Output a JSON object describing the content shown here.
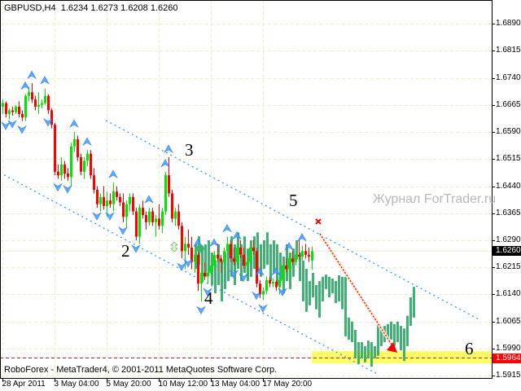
{
  "chart_data": {
    "type": "candlestick",
    "title": "GBPUSD,H4",
    "ohlc_header": [
      "1.6234",
      "1.6273",
      "1.6208",
      "1.6260"
    ],
    "footer": "RoboForex - MetaTrader4, © 2001-2011 MetaQuotes Software Corp.",
    "watermark": "Журнал ForTrader.ru",
    "ylim": [
      1.59,
      1.6955
    ],
    "y_ticks": [
      "1.6890",
      "1.6815",
      "1.6740",
      "1.6665",
      "1.6590",
      "1.6515",
      "1.6440",
      "1.6365",
      "1.6290",
      "1.6215",
      "1.6140",
      "1.6065",
      "1.5990",
      "1.5915"
    ],
    "x_ticks": [
      "28 Apr 2011",
      "3 May 04:00",
      "5 May 20:00",
      "10 May 12:00",
      "13 May 04:00",
      "17 May 20:00"
    ],
    "grid": true,
    "current_price": "1.6260",
    "target_price": "1.5964",
    "colors": {
      "bull": "#00e600",
      "bear": "#ff0000",
      "forecast": "#3cb371",
      "channel": "#1e90ff",
      "fractal": "#4aa3ff",
      "target_band": "#ffff66",
      "target_line": "#ff0000",
      "current_tag": "#000000",
      "target_tag": "#ff0000"
    },
    "wave_labels": [
      {
        "text": "2",
        "bar": 38,
        "price": 1.626
      },
      {
        "text": "3",
        "bar": 57.5,
        "price": 1.654
      },
      {
        "text": "4",
        "bar": 63.5,
        "price": 1.613
      },
      {
        "text": "5",
        "bar": 89.5,
        "price": 1.64
      },
      {
        "text": "6",
        "bar": 143.5,
        "price": 1.599
      }
    ],
    "candles": [
      [
        1.666,
        1.668,
        1.664,
        1.667
      ],
      [
        1.667,
        1.6675,
        1.663,
        1.664
      ],
      [
        1.664,
        1.6655,
        1.6625,
        1.665
      ],
      [
        1.665,
        1.666,
        1.6635,
        1.6645
      ],
      [
        1.6645,
        1.6665,
        1.664,
        1.666
      ],
      [
        1.666,
        1.6675,
        1.663,
        1.664
      ],
      [
        1.664,
        1.665,
        1.662,
        1.663
      ],
      [
        1.663,
        1.6695,
        1.662,
        1.669
      ],
      [
        1.669,
        1.6715,
        1.6675,
        1.67
      ],
      [
        1.67,
        1.6725,
        1.667,
        1.668
      ],
      [
        1.668,
        1.669,
        1.665,
        1.666
      ],
      [
        1.666,
        1.67,
        1.664,
        1.6665
      ],
      [
        1.6665,
        1.668,
        1.6655,
        1.667
      ],
      [
        1.667,
        1.671,
        1.6665,
        1.669
      ],
      [
        1.669,
        1.6695,
        1.664,
        1.665
      ],
      [
        1.665,
        1.6655,
        1.66,
        1.661
      ],
      [
        1.661,
        1.6615,
        1.647,
        1.648
      ],
      [
        1.648,
        1.65,
        1.646,
        1.647
      ],
      [
        1.647,
        1.652,
        1.6455,
        1.65
      ],
      [
        1.65,
        1.651,
        1.646,
        1.6475
      ],
      [
        1.6475,
        1.649,
        1.6455,
        1.6465
      ],
      [
        1.6465,
        1.656,
        1.644,
        1.655
      ],
      [
        1.655,
        1.659,
        1.6535,
        1.657
      ],
      [
        1.657,
        1.658,
        1.651,
        1.652
      ],
      [
        1.652,
        1.653,
        1.647,
        1.648
      ],
      [
        1.648,
        1.652,
        1.646,
        1.651
      ],
      [
        1.651,
        1.654,
        1.6495,
        1.653
      ],
      [
        1.653,
        1.654,
        1.646,
        1.647
      ],
      [
        1.647,
        1.649,
        1.642,
        1.643
      ],
      [
        1.643,
        1.644,
        1.638,
        1.639
      ],
      [
        1.639,
        1.642,
        1.637,
        1.641
      ],
      [
        1.641,
        1.644,
        1.6375,
        1.6385
      ],
      [
        1.6385,
        1.6425,
        1.6355,
        1.64
      ],
      [
        1.64,
        1.642,
        1.638,
        1.639
      ],
      [
        1.639,
        1.645,
        1.637,
        1.6425
      ],
      [
        1.6425,
        1.644,
        1.64,
        1.641
      ],
      [
        1.641,
        1.642,
        1.6385,
        1.6395
      ],
      [
        1.6395,
        1.642,
        1.634,
        1.6355
      ],
      [
        1.6355,
        1.64,
        1.6325,
        1.639
      ],
      [
        1.639,
        1.642,
        1.637,
        1.641
      ],
      [
        1.641,
        1.642,
        1.636,
        1.637
      ],
      [
        1.637,
        1.638,
        1.629,
        1.63
      ],
      [
        1.63,
        1.639,
        1.628,
        1.638
      ],
      [
        1.638,
        1.64,
        1.635,
        1.636
      ],
      [
        1.636,
        1.637,
        1.632,
        1.634
      ],
      [
        1.634,
        1.638,
        1.633,
        1.637
      ],
      [
        1.637,
        1.638,
        1.633,
        1.634
      ],
      [
        1.634,
        1.636,
        1.63,
        1.635
      ],
      [
        1.635,
        1.639,
        1.632,
        1.633
      ],
      [
        1.633,
        1.638,
        1.631,
        1.637
      ],
      [
        1.637,
        1.648,
        1.636,
        1.647
      ],
      [
        1.647,
        1.652,
        1.641,
        1.642
      ],
      [
        1.642,
        1.643,
        1.634,
        1.635
      ],
      [
        1.635,
        1.638,
        1.633,
        1.637
      ],
      [
        1.637,
        1.639,
        1.632,
        1.633
      ],
      [
        1.633,
        1.634,
        1.624,
        1.626
      ],
      [
        1.626,
        1.63,
        1.621,
        1.628
      ],
      [
        1.628,
        1.632,
        1.625,
        1.627
      ],
      [
        1.627,
        1.63,
        1.621,
        1.623
      ],
      [
        1.623,
        1.627,
        1.62,
        1.625
      ],
      [
        1.625,
        1.626,
        1.615,
        1.617
      ],
      [
        1.617,
        1.621,
        1.612,
        1.62
      ],
      [
        1.62,
        1.623,
        1.618,
        1.619
      ],
      [
        1.619,
        1.622,
        1.617,
        1.62
      ],
      [
        1.62,
        1.624,
        1.619,
        1.622
      ],
      [
        1.622,
        1.626,
        1.621,
        1.625
      ],
      [
        1.625,
        1.628,
        1.623,
        1.624
      ],
      [
        1.624,
        1.625,
        1.62,
        1.623
      ],
      [
        1.623,
        1.627,
        1.621,
        1.626
      ],
      [
        1.626,
        1.63,
        1.625,
        1.628
      ],
      [
        1.628,
        1.629,
        1.623,
        1.624
      ],
      [
        1.624,
        1.627,
        1.622,
        1.623
      ],
      [
        1.623,
        1.628,
        1.622,
        1.627
      ],
      [
        1.627,
        1.629,
        1.624,
        1.625
      ],
      [
        1.625,
        1.627,
        1.621,
        1.622
      ],
      [
        1.622,
        1.624,
        1.619,
        1.623
      ],
      [
        1.623,
        1.628,
        1.622,
        1.627
      ],
      [
        1.627,
        1.629,
        1.625,
        1.626
      ],
      [
        1.626,
        1.627,
        1.616,
        1.617
      ],
      [
        1.617,
        1.618,
        1.613,
        1.614
      ],
      [
        1.614,
        1.616,
        1.6125,
        1.615
      ],
      [
        1.615,
        1.619,
        1.614,
        1.618
      ],
      [
        1.618,
        1.619,
        1.616,
        1.617
      ],
      [
        1.617,
        1.6185,
        1.616,
        1.6175
      ],
      [
        1.6175,
        1.618,
        1.615,
        1.616
      ],
      [
        1.616,
        1.619,
        1.614,
        1.618
      ],
      [
        1.618,
        1.623,
        1.617,
        1.622
      ],
      [
        1.622,
        1.624,
        1.62,
        1.621
      ],
      [
        1.621,
        1.625,
        1.619,
        1.624
      ],
      [
        1.624,
        1.626,
        1.622,
        1.623
      ],
      [
        1.623,
        1.626,
        1.622,
        1.625
      ],
      [
        1.625,
        1.629,
        1.6235,
        1.6245
      ],
      [
        1.6245,
        1.6275,
        1.6235,
        1.626
      ],
      [
        1.626,
        1.628,
        1.624,
        1.625
      ],
      [
        1.625,
        1.627,
        1.623,
        1.6245
      ],
      [
        1.6234,
        1.6273,
        1.6208,
        1.626
      ]
    ],
    "forecast_bars": [
      [
        1.6279,
        1.6211
      ],
      [
        1.6301,
        1.6222
      ],
      [
        1.6267,
        1.6177
      ],
      [
        1.6279,
        1.6189
      ],
      [
        1.629,
        1.62
      ],
      [
        1.6256,
        1.6166
      ],
      [
        1.6234,
        1.6143
      ],
      [
        1.6279,
        1.6166
      ],
      [
        1.6234,
        1.6121
      ],
      [
        1.6256,
        1.6155
      ],
      [
        1.6279,
        1.6177
      ],
      [
        1.6301,
        1.6189
      ],
      [
        1.6279,
        1.6166
      ],
      [
        1.6312,
        1.6211
      ],
      [
        1.6279,
        1.6177
      ],
      [
        1.6301,
        1.62
      ],
      [
        1.6267,
        1.6177
      ],
      [
        1.629,
        1.6189
      ],
      [
        1.6301,
        1.6211
      ],
      [
        1.6312,
        1.62
      ],
      [
        1.6279,
        1.6189
      ],
      [
        1.629,
        1.6211
      ],
      [
        1.6312,
        1.6222
      ],
      [
        1.6279,
        1.6177
      ],
      [
        1.629,
        1.62
      ],
      [
        1.6279,
        1.6166
      ],
      [
        1.6256,
        1.6177
      ],
      [
        1.6245,
        1.6143
      ],
      [
        1.6279,
        1.6177
      ],
      [
        1.6256,
        1.6155
      ],
      [
        1.6267,
        1.6189
      ],
      [
        1.629,
        1.6238
      ],
      [
        1.6256,
        1.6177
      ],
      [
        1.6234,
        1.6121
      ],
      [
        1.6211,
        1.6092
      ],
      [
        1.6177,
        1.611
      ],
      [
        1.62,
        1.6132
      ],
      [
        1.6166,
        1.6099
      ],
      [
        1.6177,
        1.6076
      ],
      [
        1.6189,
        1.6121
      ],
      [
        1.6195,
        1.6155
      ],
      [
        1.6189,
        1.6132
      ],
      [
        1.6184,
        1.6143
      ],
      [
        1.6177,
        1.6116
      ],
      [
        1.6193,
        1.6121
      ],
      [
        1.6189,
        1.6099
      ],
      [
        1.6189,
        1.6024
      ],
      [
        1.6076,
        1.6015
      ],
      [
        1.6065,
        1.6008
      ],
      [
        1.6042,
        1.5963
      ],
      [
        1.6008,
        1.5947
      ],
      [
        1.6008,
        1.5963
      ],
      [
        1.5997,
        1.5952
      ],
      [
        1.6012,
        1.5963
      ],
      [
        1.6008,
        1.594
      ],
      [
        1.5997,
        1.5963
      ],
      [
        1.606,
        1.597
      ],
      [
        1.6046,
        1.5997
      ],
      [
        1.6053,
        1.6008
      ],
      [
        1.6058,
        1.6019
      ],
      [
        1.6065,
        1.6015
      ],
      [
        1.6058,
        1.5997
      ],
      [
        1.6065,
        1.6008
      ],
      [
        1.6053,
        1.5985
      ],
      [
        1.6046,
        1.5956
      ],
      [
        1.6081,
        1.5997
      ],
      [
        1.6132,
        1.6053
      ],
      [
        1.6161,
        1.6076
      ]
    ],
    "fractals_up": [
      7,
      9,
      13,
      22,
      26,
      34,
      45,
      50,
      51,
      60,
      65,
      69,
      72,
      79,
      84,
      88,
      92
    ],
    "fractals_down": [
      1,
      3,
      6,
      14,
      17,
      20,
      29,
      33,
      37,
      41,
      55,
      57,
      61,
      63,
      71,
      74,
      78,
      80,
      86
    ],
    "channel_upper": [
      [
        31.75,
        1.6622
      ],
      [
        146.75,
        1.6069
      ]
    ],
    "channel_lower": [
      [
        0.5,
        1.6471
      ],
      [
        115.5,
        1.5918
      ]
    ],
    "projection_arrow": [
      [
        97.5,
        1.6308
      ],
      [
        121,
        1.5981
      ]
    ],
    "stop_marker": {
      "bar": 97,
      "price": 1.6342
    },
    "target_band": [
      1.5983,
      1.5949
    ]
  }
}
